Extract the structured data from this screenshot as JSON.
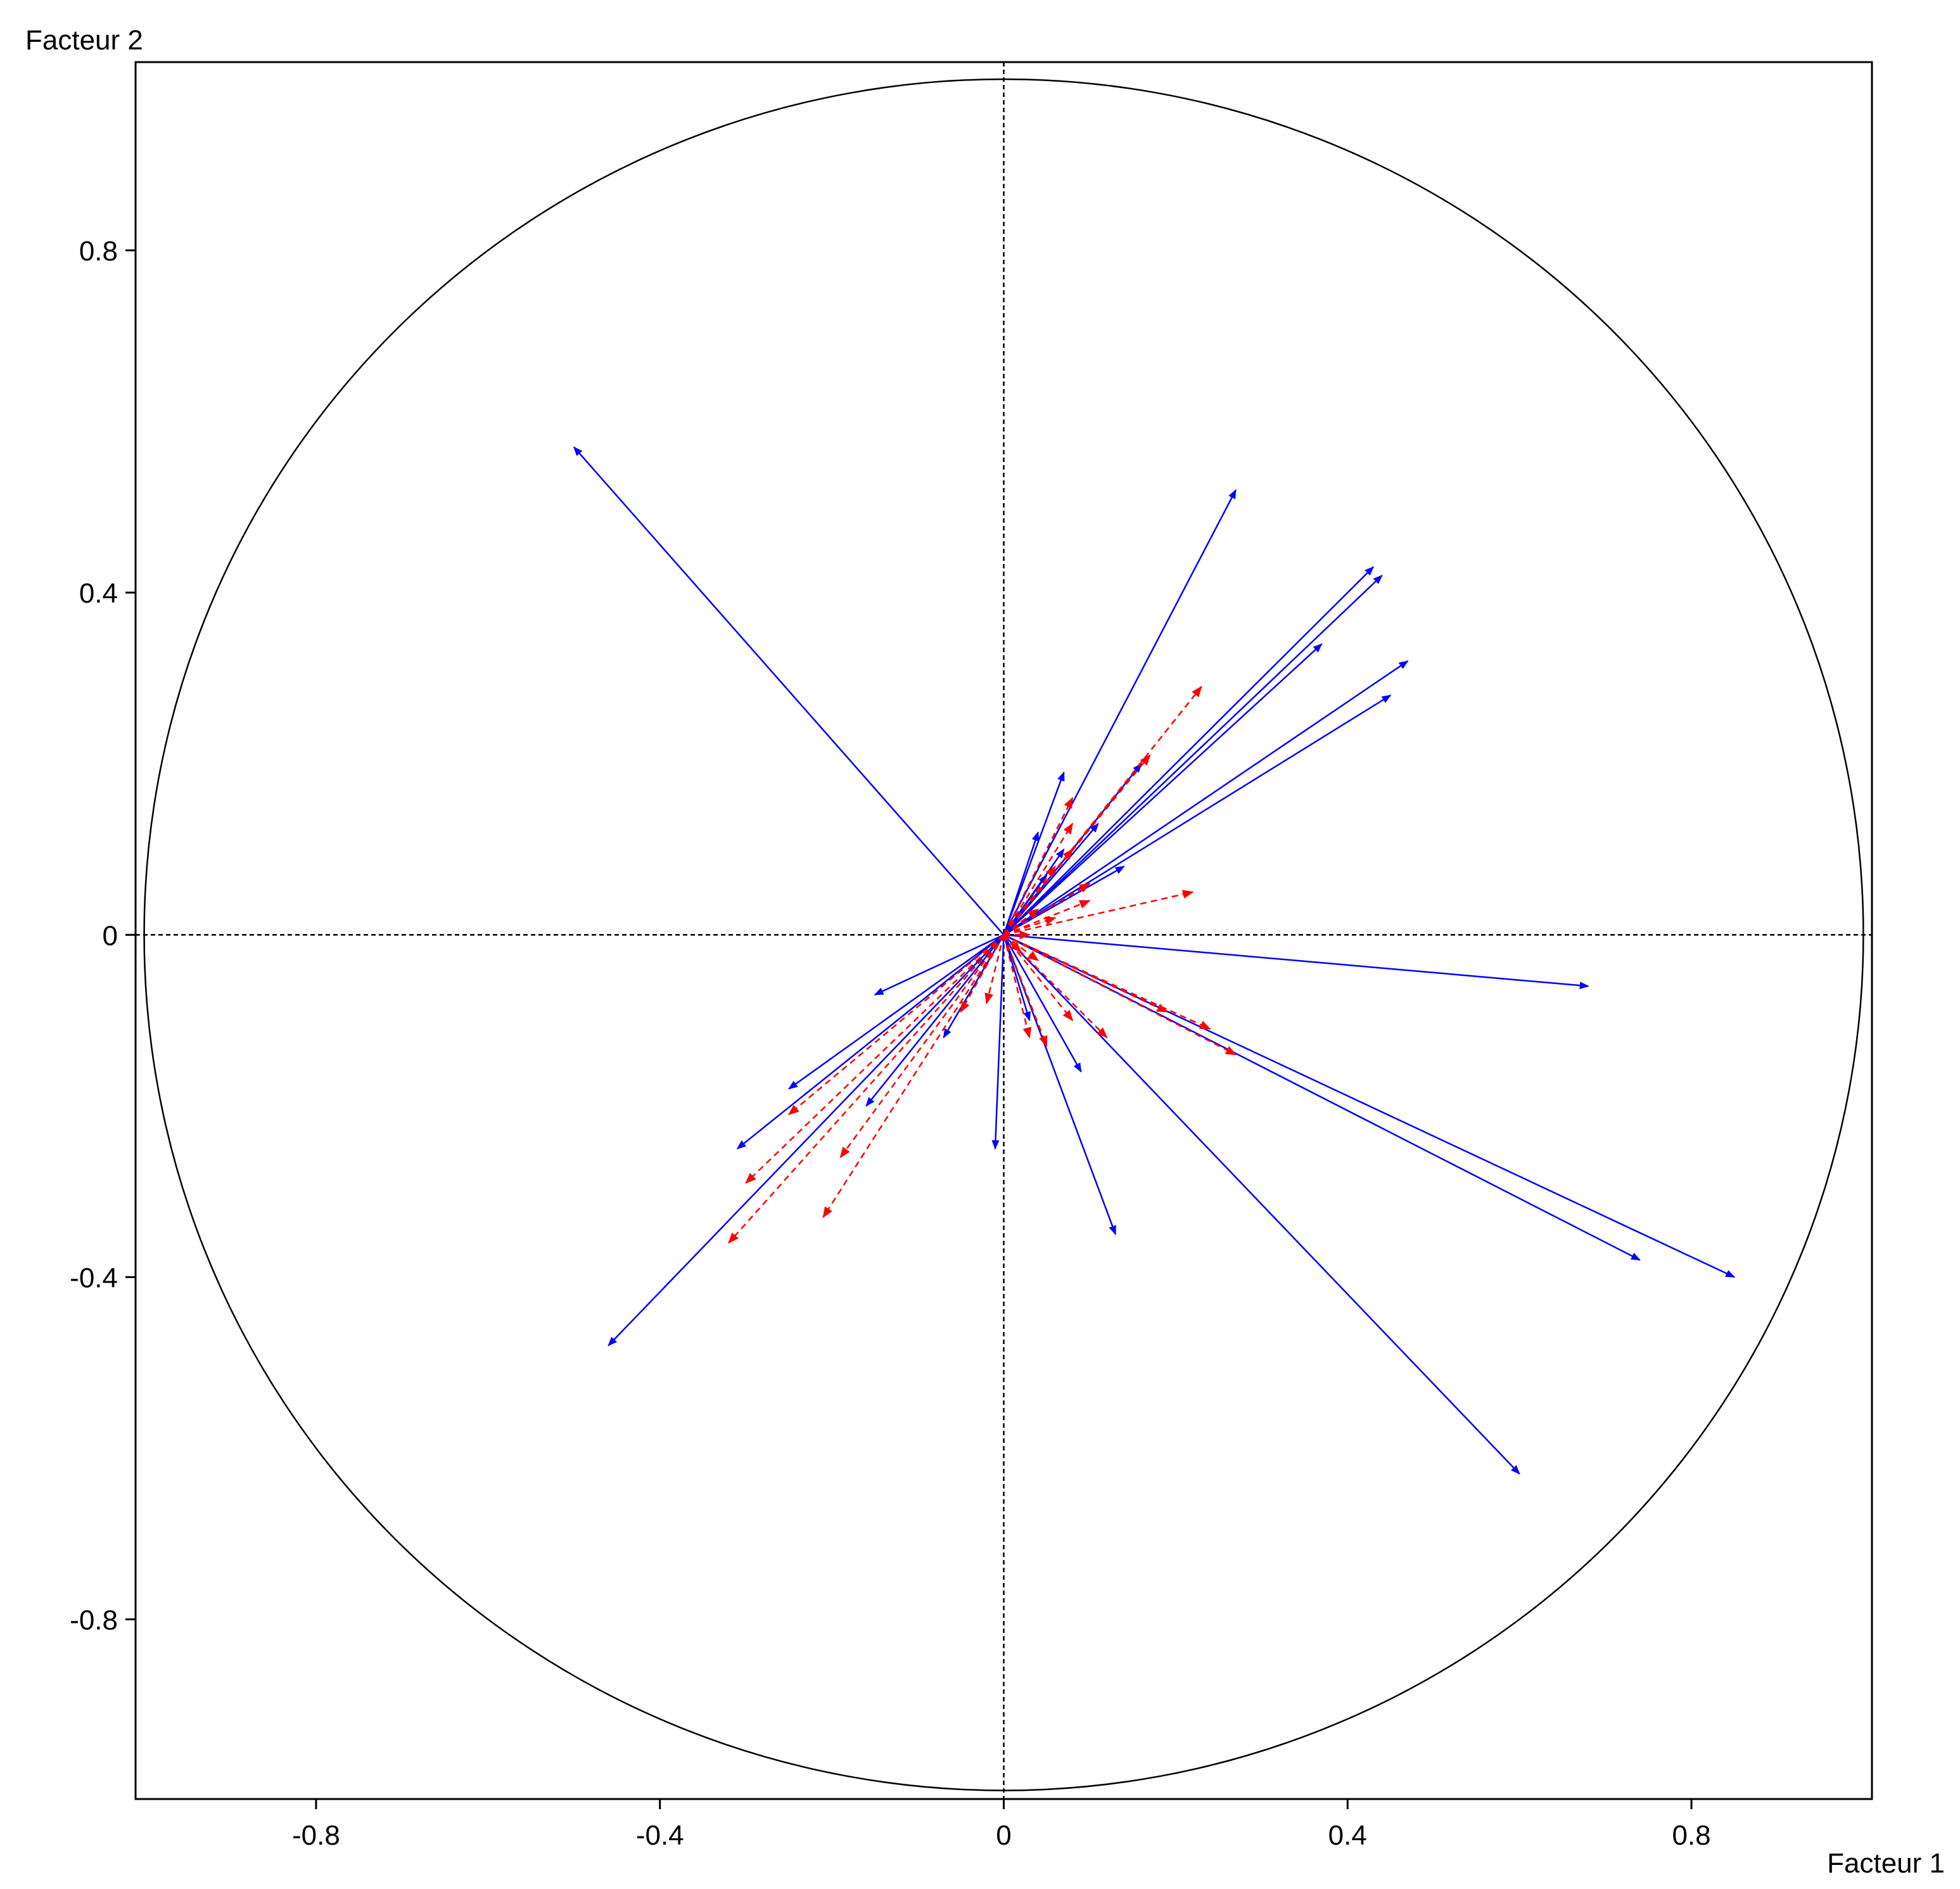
{
  "chart_data": {
    "type": "scatter",
    "subtype": "correlation-circle",
    "title": "",
    "xlabel": "Facteur 1",
    "ylabel": "Facteur 2",
    "xlim": [
      -1.01,
      1.01
    ],
    "ylim": [
      -1.01,
      1.02
    ],
    "xticks": [
      -0.8,
      -0.4,
      0,
      0.4,
      0.8
    ],
    "xtick_labels": [
      "-0.8",
      "-0.4",
      "0",
      "0.4",
      "0.8"
    ],
    "yticks": [
      0.8,
      0.4,
      0,
      -0.4,
      -0.8
    ],
    "ytick_labels": [
      "0.8",
      "0.4",
      "0",
      "-0.4",
      "-0.8"
    ],
    "unit_circle": true,
    "zero_lines": "dashed",
    "colors": {
      "active": "#0000ff",
      "supplementary": "#ff0000",
      "frame": "#000000"
    },
    "series": [
      {
        "style": "solid",
        "points": [
          [
            -0.5,
            0.57
          ],
          [
            0.27,
            0.52
          ],
          [
            0.43,
            0.43
          ],
          [
            0.44,
            0.42
          ],
          [
            0.37,
            0.34
          ],
          [
            0.47,
            0.32
          ],
          [
            0.45,
            0.28
          ],
          [
            0.16,
            0.2
          ],
          [
            0.07,
            0.19
          ],
          [
            0.14,
            0.08
          ],
          [
            0.68,
            -0.06
          ],
          [
            -0.15,
            -0.07
          ],
          [
            -0.25,
            -0.18
          ],
          [
            -0.31,
            -0.25
          ],
          [
            -0.16,
            -0.2
          ],
          [
            -0.07,
            -0.12
          ],
          [
            -0.01,
            -0.25
          ],
          [
            0.09,
            -0.16
          ],
          [
            0.13,
            -0.35
          ],
          [
            0.6,
            -0.63
          ],
          [
            0.74,
            -0.38
          ],
          [
            0.85,
            -0.4
          ],
          [
            -0.46,
            -0.48
          ],
          [
            0.07,
            0.1
          ],
          [
            0.05,
            0.07
          ],
          [
            0.04,
            0.12
          ],
          [
            0.03,
            -0.1
          ],
          [
            0.11,
            0.13
          ]
        ]
      },
      {
        "style": "dashed",
        "points": [
          [
            0.23,
            0.29
          ],
          [
            0.17,
            0.21
          ],
          [
            0.08,
            0.16
          ],
          [
            0.08,
            0.13
          ],
          [
            0.08,
            0.1
          ],
          [
            0.06,
            0.08
          ],
          [
            0.1,
            0.06
          ],
          [
            0.22,
            0.05
          ],
          [
            0.1,
            0.04
          ],
          [
            0.06,
            0.02
          ],
          [
            0.04,
            0.03
          ],
          [
            0.03,
            0.0
          ],
          [
            0.19,
            -0.09
          ],
          [
            0.24,
            -0.11
          ],
          [
            0.27,
            -0.14
          ],
          [
            0.12,
            -0.12
          ],
          [
            0.08,
            -0.1
          ],
          [
            0.05,
            -0.13
          ],
          [
            0.03,
            -0.12
          ],
          [
            0.04,
            -0.03
          ],
          [
            -0.05,
            -0.09
          ],
          [
            -0.02,
            -0.08
          ],
          [
            -0.25,
            -0.21
          ],
          [
            -0.3,
            -0.29
          ],
          [
            -0.32,
            -0.36
          ],
          [
            -0.21,
            -0.33
          ],
          [
            -0.19,
            -0.26
          ],
          [
            0.02,
            -0.02
          ]
        ]
      }
    ]
  }
}
